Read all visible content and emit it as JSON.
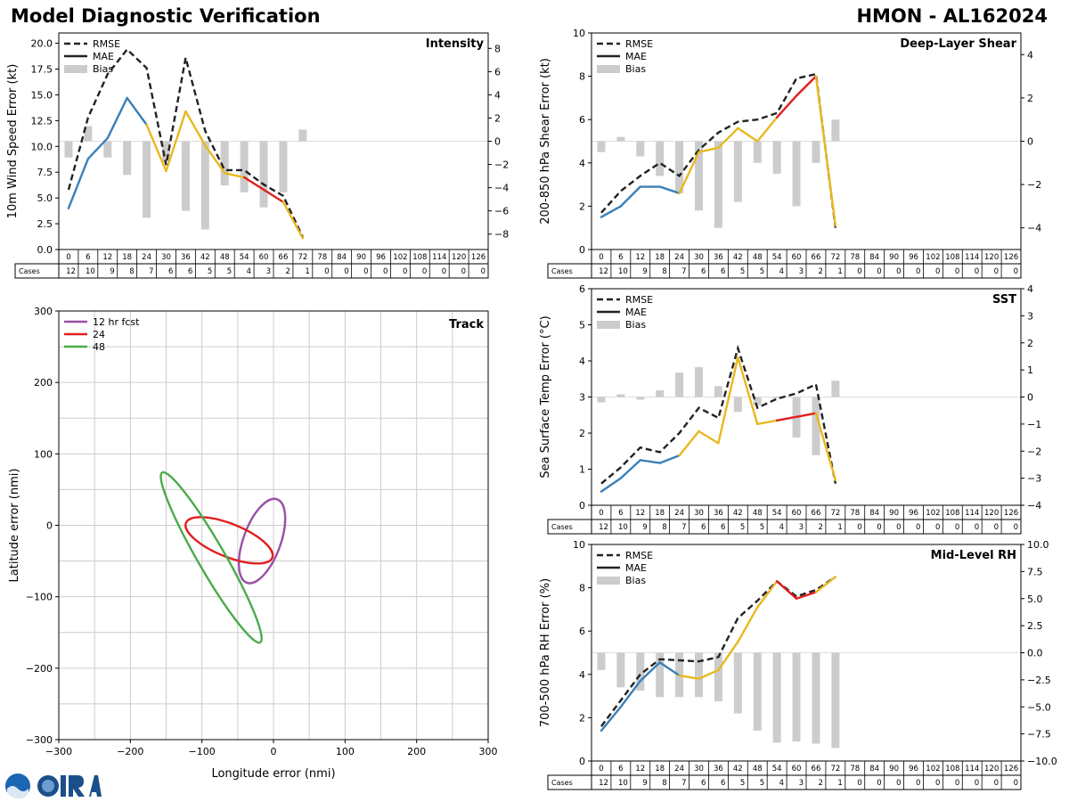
{
  "header": {
    "title_left": "Model Diagnostic Verification",
    "title_right": "HMON - AL162024"
  },
  "common": {
    "lead_hours": [
      0,
      6,
      12,
      18,
      24,
      30,
      36,
      42,
      48,
      54,
      60,
      66,
      72,
      78,
      84,
      90,
      96,
      102,
      108,
      114,
      120,
      126
    ],
    "cases": [
      12,
      10,
      9,
      8,
      7,
      6,
      6,
      5,
      5,
      4,
      3,
      2,
      1,
      0,
      0,
      0,
      0,
      0,
      0,
      0,
      0,
      0
    ],
    "cases_label": "Cases",
    "legend": [
      "RMSE",
      "MAE",
      "Bias"
    ]
  },
  "colors": {
    "rmse": "#222222",
    "mae_early": "#3a7fb8",
    "mae_mid": "#e8b820",
    "mae_late": "#e02020",
    "bias": "#cccccc",
    "grid": "#cccccc",
    "track_12": "#9b4fa8",
    "track_24": "#e02020",
    "track_48": "#4aab4a"
  },
  "chart_data": [
    {
      "id": "intensity",
      "type": "line",
      "title": "Intensity",
      "ylabel": "10m Wind Speed Error (kt)",
      "ylim": [
        0,
        21
      ],
      "y2lim": [
        -9.33,
        9.33
      ],
      "yticks": [
        "0.0",
        "2.5",
        "5.0",
        "7.5",
        "10.0",
        "12.5",
        "15.0",
        "17.5",
        "20.0"
      ],
      "y2ticks": [
        "−8",
        "−6",
        "−4",
        "−2",
        "0",
        "2",
        "4",
        "6",
        "8"
      ],
      "x": [
        0,
        6,
        12,
        18,
        24,
        30,
        36,
        42,
        48,
        54,
        60,
        66,
        72
      ],
      "rmse": [
        5.8,
        12.8,
        17.0,
        19.4,
        17.6,
        8.2,
        18.6,
        11.5,
        7.7,
        7.7,
        6.3,
        5.2,
        1.2
      ],
      "mae": [
        4.0,
        8.8,
        10.8,
        14.7,
        12.1,
        7.6,
        13.4,
        10.1,
        7.4,
        7.0,
        5.8,
        4.6,
        1.1
      ],
      "bias": [
        -1.4,
        1.3,
        -1.4,
        -2.9,
        -6.6,
        -1.8,
        -6.0,
        -7.6,
        -3.8,
        -4.4,
        -5.7,
        -4.4,
        1.0
      ]
    },
    {
      "id": "shear",
      "type": "line",
      "title": "Deep-Layer Shear",
      "ylabel": "200-850 hPa Shear Error (kt)",
      "ylim": [
        0,
        10
      ],
      "y2lim": [
        -5,
        5
      ],
      "yticks": [
        "0",
        "2",
        "4",
        "6",
        "8",
        "10"
      ],
      "y2ticks": [
        "−4",
        "−2",
        "0",
        "2",
        "4"
      ],
      "x": [
        0,
        6,
        12,
        18,
        24,
        30,
        36,
        42,
        48,
        54,
        60,
        66,
        72
      ],
      "rmse": [
        1.7,
        2.7,
        3.4,
        4.0,
        3.4,
        4.6,
        5.4,
        5.9,
        6.0,
        6.3,
        7.9,
        8.1,
        1.0
      ],
      "mae": [
        1.5,
        2.0,
        2.9,
        2.9,
        2.6,
        4.5,
        4.7,
        5.6,
        5.0,
        6.1,
        7.1,
        8.0,
        1.1
      ],
      "bias": [
        -0.5,
        0.2,
        -0.7,
        -1.6,
        -2.4,
        -3.2,
        -4.0,
        -2.8,
        -1.0,
        -1.5,
        -3.0,
        -1.0,
        1.0
      ]
    },
    {
      "id": "sst",
      "type": "line",
      "title": "SST",
      "ylabel": "Sea Surface Temp Error (°C)",
      "ylim": [
        0,
        6
      ],
      "y2lim": [
        -4,
        4
      ],
      "yticks": [
        "0",
        "1",
        "2",
        "3",
        "4",
        "5",
        "6"
      ],
      "y2ticks": [
        "−4",
        "−3",
        "−2",
        "−1",
        "0",
        "1",
        "2",
        "3",
        "4"
      ],
      "x": [
        0,
        6,
        12,
        18,
        24,
        30,
        36,
        42,
        48,
        54,
        60,
        66,
        72
      ],
      "rmse": [
        0.6,
        1.05,
        1.6,
        1.47,
        2.0,
        2.7,
        2.42,
        4.35,
        2.7,
        2.95,
        3.1,
        3.35,
        0.6
      ],
      "mae": [
        0.38,
        0.75,
        1.25,
        1.17,
        1.38,
        2.05,
        1.72,
        4.1,
        2.25,
        2.35,
        2.45,
        2.55,
        0.7
      ],
      "bias": [
        -0.2,
        0.1,
        -0.1,
        0.25,
        0.9,
        1.1,
        0.4,
        -0.55,
        -0.3,
        -0.05,
        -1.5,
        -2.15,
        0.6
      ]
    },
    {
      "id": "rh",
      "type": "line",
      "title": "Mid-Level RH",
      "ylabel": "700-500 hPa RH Error (%)",
      "ylim": [
        0,
        10
      ],
      "y2lim": [
        -10,
        10
      ],
      "yticks": [
        "0",
        "2",
        "4",
        "6",
        "8",
        "10"
      ],
      "y2ticks": [
        "−10.0",
        "−7.5",
        "−5.0",
        "−2.5",
        "0.0",
        "2.5",
        "5.0",
        "7.5",
        "10.0"
      ],
      "x": [
        0,
        6,
        12,
        18,
        24,
        30,
        36,
        42,
        48,
        54,
        60,
        66,
        72
      ],
      "rmse": [
        1.6,
        2.8,
        4.0,
        4.7,
        4.65,
        4.6,
        4.8,
        6.6,
        7.4,
        8.3,
        7.6,
        7.9,
        8.5
      ],
      "mae": [
        1.4,
        2.5,
        3.7,
        4.55,
        3.95,
        3.8,
        4.2,
        5.5,
        7.1,
        8.3,
        7.5,
        7.8,
        8.5
      ],
      "bias": [
        -1.6,
        -3.2,
        -3.5,
        -4.1,
        -4.1,
        -4.1,
        -4.5,
        -5.6,
        -7.2,
        -8.3,
        -8.2,
        -8.4,
        -8.8
      ]
    },
    {
      "id": "track",
      "type": "line",
      "title": "Track",
      "xlabel": "Longitude error (nmi)",
      "ylabel": "Latitude error (nmi)",
      "xlim": [
        -300,
        300
      ],
      "ylim": [
        -300,
        300
      ],
      "xticks": [
        "−300",
        "−200",
        "−100",
        "0",
        "100",
        "200",
        "300"
      ],
      "yticks": [
        "−300",
        "−200",
        "−100",
        "0",
        "100",
        "200",
        "300"
      ],
      "legend": [
        "12 hr fcst",
        "24",
        "48"
      ],
      "ellipses": [
        {
          "name": "12 hr fcst",
          "cx": -16,
          "cy": -22,
          "rx": 26,
          "ry": 62,
          "angle": 20
        },
        {
          "name": "24",
          "cx": -62,
          "cy": -21,
          "rx": 65,
          "ry": 23,
          "angle": 22
        },
        {
          "name": "48",
          "cx": -87,
          "cy": -45,
          "rx": 137,
          "ry": 19,
          "angle": 60
        }
      ]
    }
  ]
}
